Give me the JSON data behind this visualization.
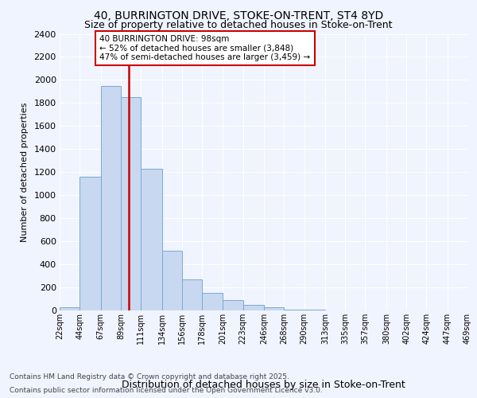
{
  "title_line1": "40, BURRINGTON DRIVE, STOKE-ON-TRENT, ST4 8YD",
  "title_line2": "Size of property relative to detached houses in Stoke-on-Trent",
  "xlabel": "Distribution of detached houses by size in Stoke-on-Trent",
  "ylabel": "Number of detached properties",
  "annotation_title": "40 BURRINGTON DRIVE: 98sqm",
  "annotation_line2": "← 52% of detached houses are smaller (3,848)",
  "annotation_line3": "47% of semi-detached houses are larger (3,459) →",
  "footnote1": "Contains HM Land Registry data © Crown copyright and database right 2025.",
  "footnote2": "Contains public sector information licensed under the Open Government Licence v3.0.",
  "bar_color": "#c8d8f0",
  "bar_edge_color": "#7aaad0",
  "marker_line_color": "#cc0000",
  "annotation_box_edge": "#cc0000",
  "background_color": "#f0f4ff",
  "grid_color": "#ffffff",
  "bins": [
    22,
    44,
    67,
    89,
    111,
    134,
    156,
    178,
    201,
    223,
    246,
    268,
    290,
    313,
    335,
    357,
    380,
    402,
    424,
    447,
    469
  ],
  "bin_labels": [
    "22sqm",
    "44sqm",
    "67sqm",
    "89sqm",
    "111sqm",
    "134sqm",
    "156sqm",
    "178sqm",
    "201sqm",
    "223sqm",
    "246sqm",
    "268sqm",
    "290sqm",
    "313sqm",
    "335sqm",
    "357sqm",
    "380sqm",
    "402sqm",
    "424sqm",
    "447sqm",
    "469sqm"
  ],
  "values": [
    30,
    1160,
    1950,
    1850,
    1230,
    520,
    270,
    150,
    90,
    50,
    30,
    10,
    5,
    3,
    2,
    1,
    1,
    0,
    0,
    0
  ],
  "property_size": 98,
  "ylim": [
    0,
    2400
  ],
  "yticks": [
    0,
    200,
    400,
    600,
    800,
    1000,
    1200,
    1400,
    1600,
    1800,
    2000,
    2200,
    2400
  ]
}
